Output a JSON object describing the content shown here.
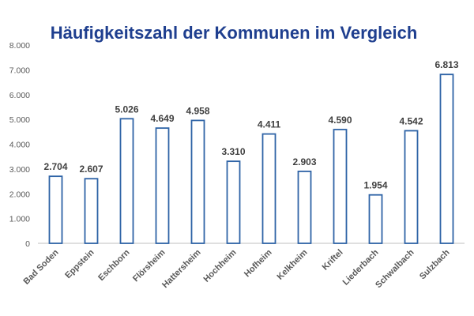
{
  "chart_data": {
    "type": "bar",
    "title": "Häufigkeitszahl der Kommunen im Vergleich",
    "xlabel": "",
    "ylabel": "",
    "ylim": [
      0,
      8000
    ],
    "yticks": [
      0,
      1000,
      2000,
      3000,
      4000,
      5000,
      6000,
      7000,
      8000
    ],
    "ytick_labels": [
      "0",
      "1.000",
      "2.000",
      "3.000",
      "4.000",
      "5.000",
      "6.000",
      "7.000",
      "8.000"
    ],
    "categories": [
      "Bad Soden",
      "Eppstein",
      "Eschborn",
      "Flörsheim",
      "Hattersheim",
      "Hochheim",
      "Hofheim",
      "Kelkheim",
      "Kriftel",
      "Liederbach",
      "Schwalbach",
      "Sulzbach"
    ],
    "values": [
      2704,
      2607,
      5026,
      4649,
      4958,
      3310,
      4411,
      2903,
      4590,
      1954,
      4542,
      6813
    ],
    "value_labels": [
      "2.704",
      "2.607",
      "5.026",
      "4.649",
      "4.958",
      "3.310",
      "4.411",
      "2.903",
      "4.590",
      "1.954",
      "4.542",
      "6.813"
    ],
    "grid": false,
    "legend": "none",
    "colors": {
      "bar_stroke": "#2e63a6",
      "bar_fill": "#ffffff",
      "title": "#1f3f8f",
      "axis": "#bfbfbf"
    }
  }
}
